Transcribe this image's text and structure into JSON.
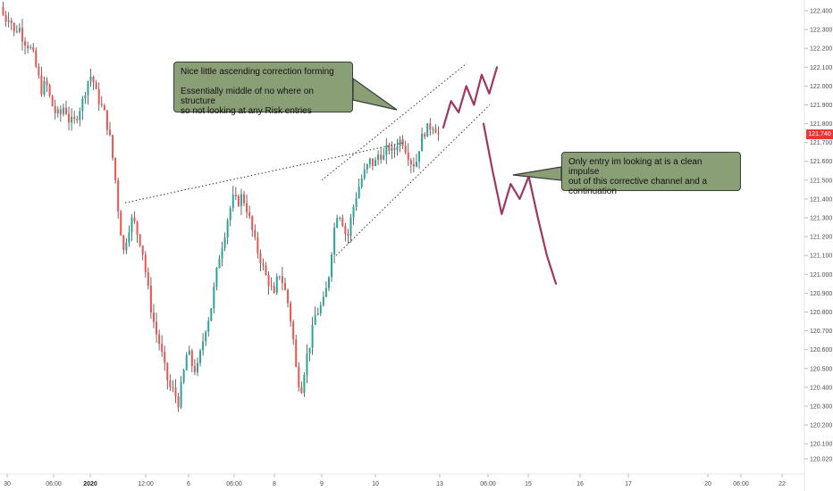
{
  "chart_data": {
    "type": "candlestick",
    "y_axis": {
      "position": "right",
      "ticks": [
        "122.400",
        "122.300",
        "122.200",
        "122.100",
        "122.000",
        "121.900",
        "121.800",
        "121.700",
        "121.600",
        "121.500",
        "121.400",
        "121.300",
        "121.200",
        "121.100",
        "121.000",
        "120.900",
        "120.800",
        "120.700",
        "120.600",
        "120.500",
        "120.400",
        "120.300",
        "120.200",
        "120.100",
        "120.020"
      ],
      "range": [
        120.0,
        122.45
      ]
    },
    "x_axis": {
      "ticks": [
        {
          "label": "30",
          "bold": false
        },
        {
          "label": "06:00",
          "bold": false
        },
        {
          "label": "2020",
          "bold": true
        },
        {
          "label": "12:00",
          "bold": false
        },
        {
          "label": "6",
          "bold": false
        },
        {
          "label": "06:00",
          "bold": false
        },
        {
          "label": "8",
          "bold": false
        },
        {
          "label": "9",
          "bold": false
        },
        {
          "label": "10",
          "bold": false
        },
        {
          "label": "13",
          "bold": false
        },
        {
          "label": "06:00",
          "bold": false
        },
        {
          "label": "15",
          "bold": false
        },
        {
          "label": "16",
          "bold": false
        },
        {
          "label": "17",
          "bold": false
        },
        {
          "label": "20",
          "bold": false
        },
        {
          "label": "06:00",
          "bold": false
        },
        {
          "label": "22",
          "bold": false
        }
      ]
    },
    "last_price": "121.740",
    "colors": {
      "up": "#26a69a",
      "down": "#ef5350",
      "wick": "#444444",
      "projection": "#a0365f",
      "price_tag": "#e53935",
      "note_fill": "#8a9f76"
    },
    "price_path": [
      122.42,
      122.35,
      122.38,
      122.28,
      122.32,
      122.25,
      122.22,
      122.18,
      122.08,
      121.98,
      122.02,
      121.92,
      121.86,
      121.84,
      121.9,
      121.82,
      121.8,
      121.86,
      121.92,
      122.02,
      122.06,
      121.96,
      121.9,
      121.84,
      121.72,
      121.55,
      121.3,
      121.12,
      121.24,
      121.3,
      121.22,
      121.15,
      120.98,
      120.82,
      120.7,
      120.62,
      120.5,
      120.4,
      120.38,
      120.32,
      120.45,
      120.6,
      120.52,
      120.48,
      120.6,
      120.72,
      120.8,
      120.95,
      121.1,
      121.2,
      121.32,
      121.4,
      121.38,
      121.42,
      121.35,
      121.25,
      121.15,
      121.08,
      121.0,
      120.95,
      120.88,
      121.02,
      120.95,
      120.85,
      120.7,
      120.45,
      120.4,
      120.55,
      120.65,
      120.78,
      120.82,
      120.86,
      121.0,
      121.22,
      121.35,
      121.28,
      121.18,
      121.32,
      121.42,
      121.5,
      121.55,
      121.6,
      121.58,
      121.65,
      121.62,
      121.68,
      121.64,
      121.7,
      121.72,
      121.66,
      121.6,
      121.58,
      121.7,
      121.76,
      121.78,
      121.8,
      121.74
    ],
    "channel": {
      "upper": [
        [
          121.5,
          121.5
        ],
        [
          122.12,
          122.12
        ]
      ],
      "lower": [
        [
          121.1,
          121.1
        ],
        [
          121.9,
          121.9
        ]
      ],
      "rising_support": [
        121.38,
        121.7
      ]
    },
    "projection_up": [
      121.78,
      121.92,
      121.86,
      122.0,
      121.9,
      122.06,
      121.96,
      122.1
    ],
    "projection_down": [
      121.8,
      121.55,
      121.32,
      121.48,
      121.4,
      121.52,
      121.3,
      121.1,
      120.95
    ],
    "annotations": [
      {
        "text": "Nice little ascending correction forming\n\nEssentially middle of no where on structure\nso not looking at any Risk entries"
      },
      {
        "text": "Only entry im looking at is a clean impulse\nout of this corrective channel and a\ncontinuation"
      }
    ]
  }
}
